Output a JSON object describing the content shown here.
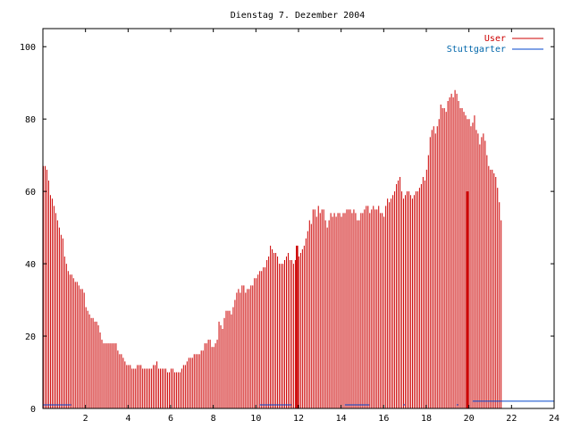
{
  "chart_data": {
    "type": "bar",
    "title": "Dienstag 7. Dezember 2004",
    "xlabel": "",
    "ylabel": "",
    "xlim": [
      0,
      24
    ],
    "ylim": [
      0,
      105
    ],
    "x_ticks": [
      2,
      4,
      6,
      8,
      10,
      12,
      14,
      16,
      18,
      20,
      22,
      24
    ],
    "y_ticks": [
      0,
      20,
      40,
      60,
      80,
      100
    ],
    "grid": false,
    "legend_position": "top-right",
    "series": [
      {
        "name": "User",
        "color": "#cc0000",
        "step_hours": 0.0833,
        "values": [
          67,
          67,
          66,
          63,
          59,
          58,
          56,
          54,
          52,
          50,
          48,
          47,
          42,
          40,
          38,
          37,
          37,
          36,
          35,
          35,
          34,
          33,
          33,
          32,
          28,
          27,
          26,
          25,
          25,
          24,
          24,
          23,
          21,
          19,
          18,
          18,
          18,
          18,
          18,
          18,
          18,
          18,
          16,
          15,
          15,
          14,
          13,
          12,
          12,
          12,
          11,
          11,
          11,
          12,
          12,
          12,
          11,
          11,
          11,
          11,
          11,
          11,
          12,
          12,
          13,
          11,
          11,
          11,
          11,
          11,
          10,
          10,
          11,
          11,
          10,
          10,
          10,
          10,
          11,
          12,
          12,
          13,
          14,
          14,
          14,
          15,
          15,
          15,
          15,
          16,
          16,
          18,
          18,
          19,
          19,
          17,
          17,
          18,
          19,
          24,
          23,
          22,
          25,
          27,
          27,
          27,
          26,
          28,
          30,
          32,
          33,
          32,
          34,
          34,
          32,
          33,
          33,
          34,
          34,
          36,
          36,
          37,
          38,
          38,
          39,
          39,
          41,
          42,
          45,
          44,
          43,
          43,
          42,
          40,
          40,
          40,
          41,
          42,
          43,
          41,
          41,
          40,
          41,
          41,
          42,
          43,
          44,
          45,
          47,
          49,
          52,
          51,
          55,
          55,
          53,
          56,
          54,
          55,
          55,
          52,
          50,
          52,
          54,
          53,
          54,
          53,
          54,
          54,
          53,
          54,
          54,
          55,
          55,
          55,
          54,
          55,
          54,
          52,
          52,
          54,
          54,
          55,
          56,
          56,
          54,
          55,
          56,
          55,
          55,
          56,
          54,
          54,
          53,
          56,
          58,
          57,
          58,
          59,
          60,
          62,
          63,
          64,
          60,
          58,
          59,
          60,
          60,
          59,
          58,
          59,
          60,
          60,
          61,
          62,
          64,
          63,
          66,
          70,
          75,
          77,
          78,
          76,
          78,
          80,
          84,
          83,
          83,
          82,
          85,
          86,
          87,
          86,
          88,
          87,
          85,
          83,
          83,
          82,
          81,
          80,
          80,
          78,
          79,
          81,
          77,
          76,
          73,
          75,
          76,
          74,
          70,
          67,
          66,
          66,
          65,
          64,
          61,
          57,
          52
        ]
      },
      {
        "name": "Stuttgarter",
        "color": "#0044cc",
        "segments": [
          {
            "x_start": 0.0,
            "x_end": 1.33,
            "value": 1
          },
          {
            "x_start": 10.17,
            "x_end": 11.67,
            "value": 1
          },
          {
            "x_start": 14.17,
            "x_end": 15.33,
            "value": 1
          },
          {
            "x_start": 16.92,
            "x_end": 17.0,
            "value": 1
          },
          {
            "x_start": 19.42,
            "x_end": 19.5,
            "value": 1
          },
          {
            "x_start": 20.17,
            "x_end": 24.0,
            "value": 2
          }
        ],
        "spikes": [
          {
            "x": 11.92,
            "value": 45
          },
          {
            "x": 19.92,
            "value": 60
          }
        ]
      }
    ]
  }
}
